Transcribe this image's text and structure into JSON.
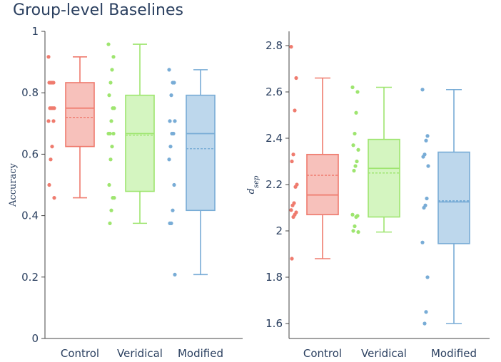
{
  "title": "Group-level Baselines",
  "chart_data": [
    {
      "type": "box",
      "ylabel": "Accuracy",
      "ylim": [
        0,
        1
      ],
      "yticks": [
        "0",
        "0.2",
        "0.4",
        "0.6",
        "0.8",
        "1"
      ],
      "categories": [
        "Control",
        "Veridical",
        "Modified"
      ],
      "boxes": [
        {
          "name": "Control",
          "color": "#ef7b6e",
          "fill": "#f7c1bb",
          "q1": 0.625,
          "median": 0.75,
          "q3": 0.833,
          "mean": 0.72,
          "lowerfence": 0.458,
          "upperfence": 0.917,
          "points": [
            0.917,
            0.833,
            0.833,
            0.833,
            0.833,
            0.75,
            0.75,
            0.75,
            0.75,
            0.708,
            0.708,
            0.625,
            0.583,
            0.5,
            0.458
          ]
        },
        {
          "name": "Veridical",
          "color": "#9ee56f",
          "fill": "#d4f5c0",
          "q1": 0.479,
          "median": 0.667,
          "q3": 0.792,
          "mean": 0.662,
          "lowerfence": 0.375,
          "upperfence": 0.958,
          "points": [
            0.958,
            0.917,
            0.875,
            0.833,
            0.792,
            0.75,
            0.75,
            0.708,
            0.667,
            0.667,
            0.667,
            0.625,
            0.583,
            0.5,
            0.458,
            0.458,
            0.417,
            0.375
          ]
        },
        {
          "name": "Modified",
          "color": "#78acd6",
          "fill": "#bdd7ec",
          "q1": 0.417,
          "median": 0.667,
          "q3": 0.792,
          "mean": 0.618,
          "lowerfence": 0.208,
          "upperfence": 0.875,
          "points": [
            0.875,
            0.833,
            0.833,
            0.792,
            0.708,
            0.708,
            0.667,
            0.667,
            0.625,
            0.583,
            0.5,
            0.417,
            0.375,
            0.375,
            0.208
          ]
        }
      ]
    },
    {
      "type": "box",
      "ylabel": "d_sep",
      "ylim": [
        1.56,
        2.86
      ],
      "yticks": [
        "1.6",
        "1.8",
        "2",
        "2.2",
        "2.4",
        "2.6",
        "2.8"
      ],
      "categories": [
        "Control",
        "Veridical",
        "Modified"
      ],
      "boxes": [
        {
          "name": "Control",
          "color": "#ef7b6e",
          "fill": "#f7c1bb",
          "q1": 2.07,
          "median": 2.155,
          "q3": 2.33,
          "mean": 2.24,
          "lowerfence": 1.88,
          "upperfence": 2.66,
          "points": [
            2.795,
            2.66,
            2.52,
            2.33,
            2.3,
            2.2,
            2.19,
            2.12,
            2.11,
            2.09,
            2.08,
            2.07,
            2.06,
            1.88
          ]
        },
        {
          "name": "Veridical",
          "color": "#9ee56f",
          "fill": "#d4f5c0",
          "q1": 2.06,
          "median": 2.27,
          "q3": 2.395,
          "mean": 2.25,
          "lowerfence": 1.995,
          "upperfence": 2.62,
          "points": [
            2.62,
            2.6,
            2.51,
            2.42,
            2.37,
            2.35,
            2.3,
            2.28,
            2.26,
            2.07,
            2.065,
            2.06,
            2.02,
            2.0,
            1.995
          ]
        },
        {
          "name": "Modified",
          "color": "#78acd6",
          "fill": "#bdd7ec",
          "q1": 1.945,
          "median": 2.125,
          "q3": 2.34,
          "mean": 2.13,
          "lowerfence": 1.6,
          "upperfence": 2.61,
          "points": [
            2.61,
            2.41,
            2.39,
            2.33,
            2.32,
            2.28,
            2.14,
            2.11,
            2.1,
            1.95,
            1.8,
            1.65,
            1.6
          ]
        }
      ]
    }
  ]
}
